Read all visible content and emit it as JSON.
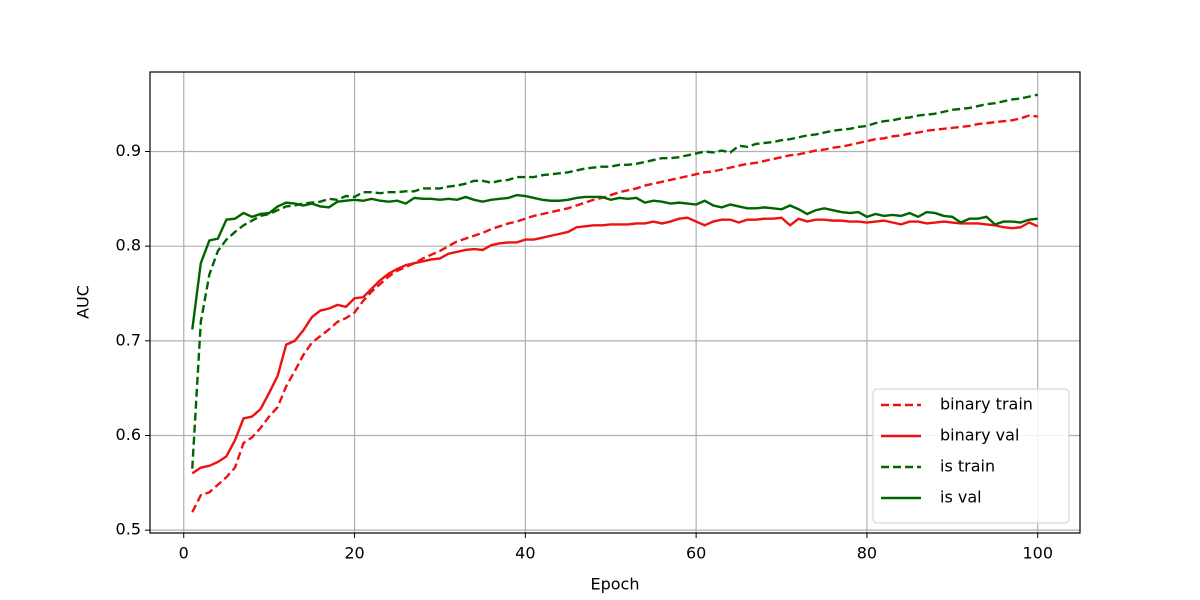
{
  "chart_data": {
    "type": "line",
    "xlabel": "Epoch",
    "ylabel": "AUC",
    "x": [
      1,
      2,
      3,
      4,
      5,
      6,
      7,
      8,
      9,
      10,
      11,
      12,
      13,
      14,
      15,
      16,
      17,
      18,
      19,
      20,
      21,
      22,
      23,
      24,
      25,
      26,
      27,
      28,
      29,
      30,
      31,
      32,
      33,
      34,
      35,
      36,
      37,
      38,
      39,
      40,
      41,
      42,
      43,
      44,
      45,
      46,
      47,
      48,
      49,
      50,
      51,
      52,
      53,
      54,
      55,
      56,
      57,
      58,
      59,
      60,
      61,
      62,
      63,
      64,
      65,
      66,
      67,
      68,
      69,
      70,
      71,
      72,
      73,
      74,
      75,
      76,
      77,
      78,
      79,
      80,
      81,
      82,
      83,
      84,
      85,
      86,
      87,
      88,
      89,
      90,
      91,
      92,
      93,
      94,
      95,
      96,
      97,
      98,
      99,
      100
    ],
    "series": [
      {
        "name": "binary train",
        "color": "#ee1111",
        "linestyle": "dashed",
        "values": [
          0.519,
          0.537,
          0.54,
          0.548,
          0.556,
          0.566,
          0.592,
          0.598,
          0.608,
          0.62,
          0.63,
          0.652,
          0.668,
          0.685,
          0.698,
          0.705,
          0.712,
          0.72,
          0.724,
          0.73,
          0.742,
          0.752,
          0.76,
          0.768,
          0.774,
          0.778,
          0.782,
          0.787,
          0.791,
          0.795,
          0.8,
          0.805,
          0.808,
          0.811,
          0.814,
          0.818,
          0.821,
          0.824,
          0.826,
          0.829,
          0.832,
          0.834,
          0.836,
          0.838,
          0.84,
          0.843,
          0.846,
          0.849,
          0.851,
          0.854,
          0.857,
          0.859,
          0.861,
          0.864,
          0.866,
          0.868,
          0.87,
          0.872,
          0.874,
          0.876,
          0.878,
          0.879,
          0.881,
          0.883,
          0.885,
          0.887,
          0.888,
          0.89,
          0.892,
          0.894,
          0.896,
          0.897,
          0.899,
          0.901,
          0.902,
          0.904,
          0.905,
          0.907,
          0.909,
          0.911,
          0.913,
          0.914,
          0.916,
          0.917,
          0.919,
          0.92,
          0.922,
          0.923,
          0.924,
          0.925,
          0.926,
          0.927,
          0.929,
          0.93,
          0.931,
          0.932,
          0.933,
          0.935,
          0.938,
          0.937
        ]
      },
      {
        "name": "binary val",
        "color": "#ee1111",
        "linestyle": "solid",
        "values": [
          0.56,
          0.566,
          0.568,
          0.572,
          0.578,
          0.595,
          0.618,
          0.62,
          0.628,
          0.645,
          0.663,
          0.696,
          0.7,
          0.711,
          0.725,
          0.732,
          0.734,
          0.738,
          0.736,
          0.745,
          0.746,
          0.755,
          0.764,
          0.771,
          0.776,
          0.78,
          0.782,
          0.784,
          0.786,
          0.787,
          0.792,
          0.794,
          0.796,
          0.797,
          0.796,
          0.801,
          0.803,
          0.804,
          0.804,
          0.807,
          0.807,
          0.809,
          0.811,
          0.813,
          0.815,
          0.82,
          0.821,
          0.822,
          0.822,
          0.823,
          0.823,
          0.823,
          0.824,
          0.824,
          0.826,
          0.824,
          0.826,
          0.829,
          0.83,
          0.826,
          0.822,
          0.826,
          0.828,
          0.828,
          0.825,
          0.828,
          0.828,
          0.829,
          0.829,
          0.83,
          0.822,
          0.829,
          0.826,
          0.828,
          0.828,
          0.827,
          0.827,
          0.826,
          0.826,
          0.825,
          0.826,
          0.827,
          0.825,
          0.823,
          0.826,
          0.826,
          0.824,
          0.825,
          0.826,
          0.825,
          0.824,
          0.824,
          0.824,
          0.823,
          0.822,
          0.82,
          0.819,
          0.82,
          0.825,
          0.821
        ]
      },
      {
        "name": "is train",
        "color": "#006400",
        "linestyle": "dashed",
        "values": [
          0.565,
          0.72,
          0.77,
          0.795,
          0.807,
          0.815,
          0.822,
          0.827,
          0.832,
          0.834,
          0.838,
          0.842,
          0.843,
          0.845,
          0.846,
          0.847,
          0.85,
          0.849,
          0.853,
          0.852,
          0.857,
          0.857,
          0.856,
          0.857,
          0.857,
          0.858,
          0.858,
          0.861,
          0.861,
          0.861,
          0.863,
          0.864,
          0.866,
          0.869,
          0.869,
          0.867,
          0.869,
          0.87,
          0.873,
          0.873,
          0.873,
          0.875,
          0.876,
          0.877,
          0.878,
          0.88,
          0.882,
          0.883,
          0.884,
          0.884,
          0.886,
          0.886,
          0.887,
          0.889,
          0.891,
          0.893,
          0.893,
          0.894,
          0.896,
          0.898,
          0.9,
          0.899,
          0.901,
          0.899,
          0.906,
          0.905,
          0.908,
          0.909,
          0.91,
          0.912,
          0.913,
          0.915,
          0.917,
          0.918,
          0.92,
          0.922,
          0.923,
          0.924,
          0.926,
          0.927,
          0.93,
          0.932,
          0.933,
          0.935,
          0.936,
          0.938,
          0.939,
          0.94,
          0.942,
          0.944,
          0.945,
          0.946,
          0.948,
          0.95,
          0.951,
          0.953,
          0.955,
          0.956,
          0.958,
          0.96
        ]
      },
      {
        "name": "is val",
        "color": "#006400",
        "linestyle": "solid",
        "values": [
          0.712,
          0.782,
          0.806,
          0.808,
          0.828,
          0.829,
          0.835,
          0.831,
          0.834,
          0.835,
          0.842,
          0.846,
          0.845,
          0.843,
          0.845,
          0.842,
          0.841,
          0.847,
          0.848,
          0.849,
          0.848,
          0.85,
          0.848,
          0.847,
          0.848,
          0.845,
          0.851,
          0.85,
          0.85,
          0.849,
          0.85,
          0.849,
          0.852,
          0.849,
          0.847,
          0.849,
          0.85,
          0.851,
          0.854,
          0.853,
          0.851,
          0.849,
          0.848,
          0.848,
          0.849,
          0.851,
          0.852,
          0.852,
          0.852,
          0.849,
          0.851,
          0.85,
          0.851,
          0.846,
          0.848,
          0.847,
          0.845,
          0.846,
          0.845,
          0.844,
          0.848,
          0.843,
          0.841,
          0.844,
          0.842,
          0.84,
          0.84,
          0.841,
          0.84,
          0.839,
          0.843,
          0.839,
          0.834,
          0.838,
          0.84,
          0.838,
          0.836,
          0.835,
          0.836,
          0.831,
          0.834,
          0.832,
          0.833,
          0.832,
          0.835,
          0.831,
          0.836,
          0.835,
          0.832,
          0.831,
          0.825,
          0.829,
          0.829,
          0.831,
          0.823,
          0.826,
          0.826,
          0.825,
          0.828,
          0.829
        ]
      }
    ],
    "xlim": [
      -3.95,
      104.95
    ],
    "xticks": [
      0,
      20,
      40,
      60,
      80,
      100
    ],
    "ylim": [
      0.497,
      0.984
    ],
    "yticks": [
      0.5,
      0.6,
      0.7,
      0.8,
      0.9
    ],
    "grid": true,
    "legend_position": "lower right"
  }
}
